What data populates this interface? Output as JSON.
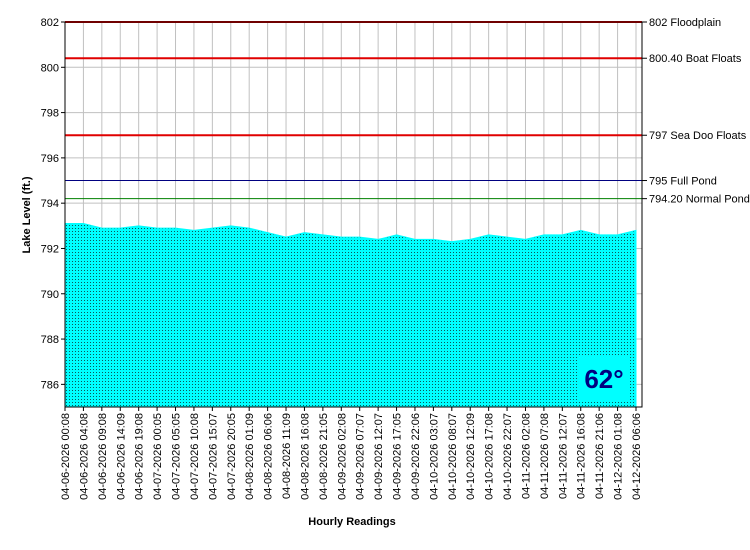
{
  "chart_data": {
    "type": "area",
    "y_label": "Lake Level (ft.)",
    "x_label": "Hourly Readings",
    "badge": "62°",
    "categories": [
      "04-06-2026 00:08",
      "04-06-2026 04:08",
      "04-06-2026 09:08",
      "04-06-2026 14:09",
      "04-06-2026 19:08",
      "04-07-2026 00:05",
      "04-07-2026 05:05",
      "04-07-2026 10:08",
      "04-07-2026 15:07",
      "04-07-2026 20:05",
      "04-08-2026 01:09",
      "04-08-2026 06:06",
      "04-08-2026 11:09",
      "04-08-2026 16:08",
      "04-08-2026 21:05",
      "04-09-2026 02:08",
      "04-09-2026 07:07",
      "04-09-2026 12:07",
      "04-09-2026 17:05",
      "04-09-2026 22:06",
      "04-10-2026 03:07",
      "04-10-2026 08:07",
      "04-10-2026 12:09",
      "04-10-2026 17:08",
      "04-10-2026 22:07",
      "04-11-2026 02:08",
      "04-11-2026 07:08",
      "04-11-2026 12:07",
      "04-11-2026 16:08",
      "04-11-2026 21:06",
      "04-12-2026 01:08",
      "04-12-2026 06:06"
    ],
    "series": [
      {
        "name": "Lake Level",
        "color": "#00ffff",
        "values": [
          793.1,
          793.1,
          792.9,
          792.9,
          793.0,
          792.9,
          792.9,
          792.8,
          792.9,
          793.0,
          792.9,
          792.7,
          792.5,
          792.7,
          792.6,
          792.5,
          792.5,
          792.4,
          792.6,
          792.4,
          792.4,
          792.3,
          792.4,
          792.6,
          792.5,
          792.4,
          792.6,
          792.6,
          792.8,
          792.6,
          792.6,
          792.8
        ]
      }
    ],
    "reference_lines": [
      {
        "value": 802,
        "label": "802 Floodplain",
        "color": "#e00000"
      },
      {
        "value": 800.4,
        "label": "800.40 Boat Floats",
        "color": "#e00000"
      },
      {
        "value": 797,
        "label": "797 Sea Doo Floats",
        "color": "#e00000"
      },
      {
        "value": 795,
        "label": "795 Full Pond",
        "color": "#000080"
      },
      {
        "value": 794.2,
        "label": "794.20 Normal Pond",
        "color": "#008000"
      }
    ],
    "ylim": [
      785,
      802
    ],
    "yticks": [
      786,
      788,
      790,
      792,
      794,
      796,
      798,
      800,
      802
    ],
    "grid": true
  }
}
